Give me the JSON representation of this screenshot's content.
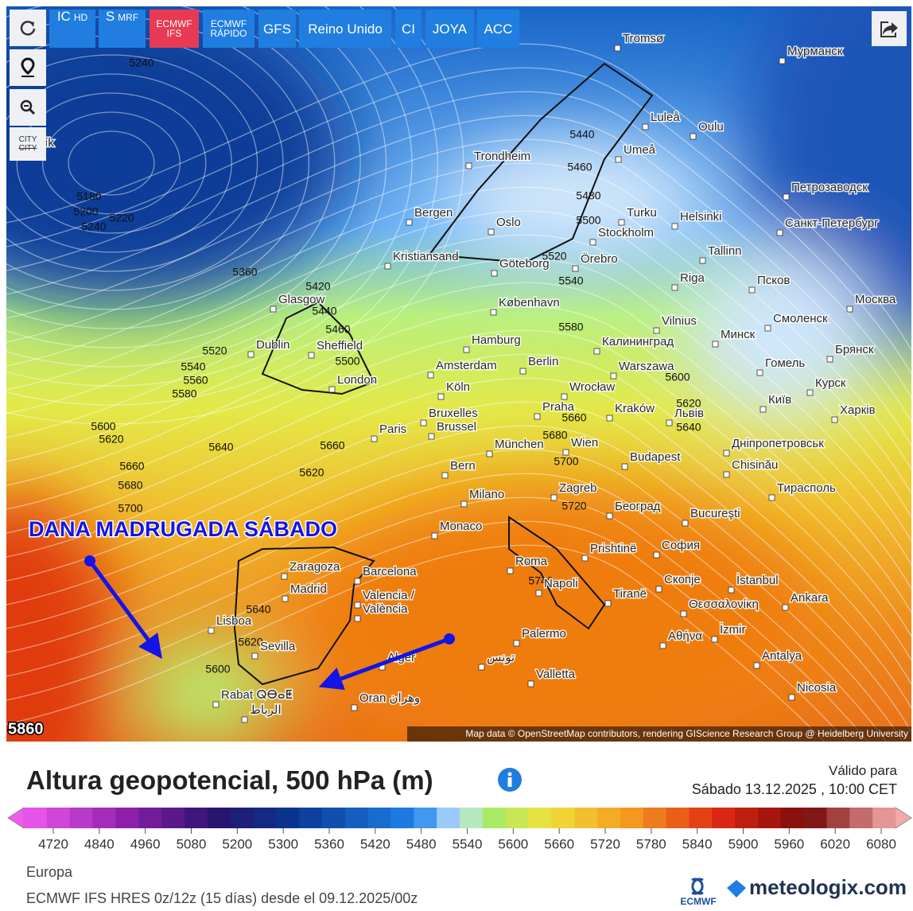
{
  "toolbar": {
    "buttons": [
      {
        "label": "IC",
        "sub": "HD"
      },
      {
        "label": "S",
        "sub": "MRF"
      },
      {
        "label": "ECMWF",
        "sub": "IFS",
        "active": true
      },
      {
        "label": "ECMWF",
        "sub": "RÁPIDO"
      },
      {
        "label": "GFS"
      },
      {
        "label": "Reino Unido"
      },
      {
        "label": "CI"
      },
      {
        "label": "JOYA"
      },
      {
        "label": "ACC"
      }
    ],
    "city_button": "CITY"
  },
  "map": {
    "cities": [
      "Tromsø",
      "Мурманск",
      "ykjavík",
      "Luleå",
      "Oulu",
      "Trondheim",
      "Umeå",
      "Bergen",
      "Oslo",
      "Turku",
      "Helsinki",
      "Петрозаводск",
      "Санкт-Петербург",
      "Stockholm",
      "Kristiansand",
      "Göteborg",
      "Örebro",
      "Tallinn",
      "Riga",
      "Псков",
      "Glasgow",
      "København",
      "Москва",
      "Dublin",
      "Sheffield",
      "Hamburg",
      "Vilnius",
      "Минск",
      "Смоленск",
      "Калининград",
      "Брянск",
      "Amsterdam",
      "Berlin",
      "London",
      "Warszawa",
      "Гомель",
      "Курск",
      "Köln",
      "Wrocław",
      "Київ",
      "Bruxelles",
      "Brussel",
      "Praha",
      "Kraków",
      "Львів",
      "Харків",
      "Paris",
      "München",
      "Wien",
      "Днiпропетровськ",
      "Bern",
      "Budapest",
      "Chisinău",
      "Тирасполь",
      "Milano",
      "Zagreb",
      "Београд",
      "Bucureşti",
      "Monaco",
      "София",
      "Prishtinë",
      "Zaragoza",
      "Barcelona",
      "Madrid",
      "Roma",
      "Napoli",
      "Скопје",
      "İstanbul",
      "Tiranë",
      "Valencia /",
      "València",
      "Θεσσαλονίκη",
      "Ankara",
      "Lisboa",
      "Sevilla",
      "Palermo",
      "İzmir",
      "Αθήνα",
      "Alger",
      "تونس",
      "Antalya",
      "Valletta",
      "Nicosia",
      "Rabat ⵕⴱⴰⵟ",
      "Oran وهران",
      "الرباط"
    ],
    "contours": [
      5240,
      5180,
      5200,
      5220,
      5240,
      5360,
      5420,
      5440,
      5460,
      5500,
      5520,
      5540,
      5560,
      5580,
      5600,
      5620,
      5660,
      5680,
      5700,
      5640,
      5660,
      5620,
      5640,
      5620,
      5600,
      5440,
      5460,
      5480,
      5500,
      5520,
      5540,
      5580,
      5600,
      5620,
      5640,
      5660,
      5680,
      5700,
      5720,
      5740
    ],
    "corner_value": 5860,
    "annotation": "DANA MADRUGADA SÁBADO",
    "attribution": "Map data © OpenStreetMap contributors, rendering GIScience Research Group @ Heidelberg University"
  },
  "panel": {
    "title": "Altura geopotencial, 500 hPa (m)",
    "valid_label": "Válido para",
    "valid": "Sábado 13.12.2025 , 10:00 CET",
    "colorbar_ticks": [
      4720,
      4840,
      4960,
      5080,
      5200,
      5300,
      5360,
      5420,
      5480,
      5540,
      5600,
      5660,
      5720,
      5780,
      5840,
      5900,
      5960,
      6020,
      6080
    ],
    "region": "Europa",
    "model_info": "ECMWF IFS HRES 0z/12z (15 días) desde el 09.12.2025/00z",
    "logos": [
      "ECMWF",
      "meteologix.com"
    ]
  }
}
